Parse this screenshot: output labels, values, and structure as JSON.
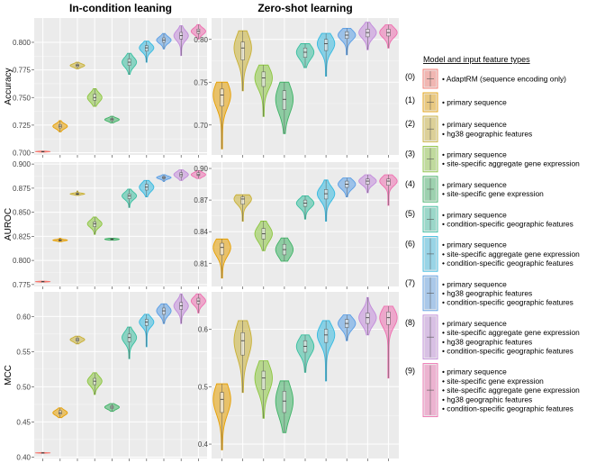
{
  "chart_data": {
    "type": "violin",
    "column_titles": [
      "In-condition leaning",
      "Zero-shot learning"
    ],
    "legend": {
      "title": "Model and input feature types",
      "entries": [
        {
          "code": "(0)",
          "color": "#F8766D",
          "lines": [
            "• AdaptRM (sequence encoding only)"
          ]
        },
        {
          "code": "(1)",
          "color": "#E69F00",
          "lines": [
            "• primary sequence"
          ]
        },
        {
          "code": "(2)",
          "color": "#C9B034",
          "lines": [
            "• primary sequence",
            "• hg38 geographic features"
          ]
        },
        {
          "code": "(3)",
          "color": "#8CC63F",
          "lines": [
            "• primary sequence",
            "• site-specific aggregate gene expression"
          ]
        },
        {
          "code": "(4)",
          "color": "#3FB266",
          "lines": [
            "• primary sequence",
            "• site-specific gene expression"
          ]
        },
        {
          "code": "(5)",
          "color": "#39BFA0",
          "lines": [
            "• primary sequence",
            "• condition-specific geographic features"
          ]
        },
        {
          "code": "(6)",
          "color": "#35B9E0",
          "lines": [
            "• primary sequence",
            "• site-specific aggregate gene expression",
            "• condition-specific geographic features"
          ]
        },
        {
          "code": "(7)",
          "color": "#5A9EE6",
          "lines": [
            "• primary sequence",
            "• hg38 geographic features",
            "• condition-specific geographic features"
          ]
        },
        {
          "code": "(8)",
          "color": "#C28BDB",
          "lines": [
            "• primary sequence",
            "• site-specific aggregate gene expression",
            "• hg38 geographic features",
            "• condition-specific geographic features"
          ]
        },
        {
          "code": "(9)",
          "color": "#EE6FB0",
          "lines": [
            "• primary sequence",
            "• site-specific gene expression",
            "• site-specific aggregate gene expression",
            "• hg38 geographic features",
            "• condition-specific geographic features"
          ]
        }
      ]
    },
    "panels": [
      {
        "id": "acc-in",
        "metric": "Accuracy",
        "column": "In-condition leaning",
        "ylim": [
          0.698,
          0.822
        ],
        "yticks": [
          0.7,
          0.725,
          0.75,
          0.775,
          0.8
        ],
        "tick_labels": [
          "0.700",
          "0.725",
          "0.750",
          "0.775",
          "0.800"
        ],
        "groups": [
          {
            "median": 0.701,
            "q1": 0.7008,
            "q3": 0.7012,
            "min": 0.7005,
            "max": 0.7015
          },
          {
            "median": 0.724,
            "q1": 0.7225,
            "q3": 0.7255,
            "min": 0.719,
            "max": 0.729
          },
          {
            "median": 0.779,
            "q1": 0.778,
            "q3": 0.78,
            "min": 0.776,
            "max": 0.782
          },
          {
            "median": 0.75,
            "q1": 0.7475,
            "q3": 0.753,
            "min": 0.742,
            "max": 0.758
          },
          {
            "median": 0.73,
            "q1": 0.729,
            "q3": 0.731,
            "min": 0.727,
            "max": 0.733
          },
          {
            "median": 0.782,
            "q1": 0.779,
            "q3": 0.785,
            "min": 0.771,
            "max": 0.79
          },
          {
            "median": 0.795,
            "q1": 0.792,
            "q3": 0.797,
            "min": 0.782,
            "max": 0.801
          },
          {
            "median": 0.802,
            "q1": 0.8,
            "q3": 0.804,
            "min": 0.794,
            "max": 0.808
          },
          {
            "median": 0.806,
            "q1": 0.803,
            "q3": 0.809,
            "min": 0.788,
            "max": 0.815
          },
          {
            "median": 0.81,
            "q1": 0.808,
            "q3": 0.812,
            "min": 0.803,
            "max": 0.816
          }
        ]
      },
      {
        "id": "acc-zs",
        "metric": "Accuracy",
        "column": "Zero-shot learning",
        "ylim": [
          0.665,
          0.825
        ],
        "yticks": [
          0.7,
          0.75,
          0.8
        ],
        "tick_labels": [
          "0.70",
          "0.75",
          "0.80"
        ],
        "groups": [
          {
            "median": 0.735,
            "q1": 0.722,
            "q3": 0.742,
            "min": 0.672,
            "max": 0.75
          },
          {
            "median": 0.79,
            "q1": 0.776,
            "q3": 0.797,
            "min": 0.74,
            "max": 0.81
          },
          {
            "median": 0.755,
            "q1": 0.745,
            "q3": 0.762,
            "min": 0.71,
            "max": 0.77
          },
          {
            "median": 0.73,
            "q1": 0.718,
            "q3": 0.74,
            "min": 0.69,
            "max": 0.75
          },
          {
            "median": 0.785,
            "q1": 0.779,
            "q3": 0.79,
            "min": 0.767,
            "max": 0.795
          },
          {
            "median": 0.795,
            "q1": 0.787,
            "q3": 0.8,
            "min": 0.757,
            "max": 0.807
          },
          {
            "median": 0.805,
            "q1": 0.801,
            "q3": 0.809,
            "min": 0.782,
            "max": 0.813
          },
          {
            "median": 0.808,
            "q1": 0.803,
            "q3": 0.812,
            "min": 0.788,
            "max": 0.82
          },
          {
            "median": 0.808,
            "q1": 0.804,
            "q3": 0.812,
            "min": 0.79,
            "max": 0.817
          }
        ]
      },
      {
        "id": "auroc-in",
        "metric": "AUROC",
        "column": "In-condition leaning",
        "ylim": [
          0.773,
          0.902
        ],
        "yticks": [
          0.775,
          0.8,
          0.825,
          0.85,
          0.875,
          0.9
        ],
        "tick_labels": [
          "0.775",
          "0.800",
          "0.825",
          "0.850",
          "0.875",
          "0.900"
        ],
        "groups": [
          {
            "median": 0.778,
            "q1": 0.7778,
            "q3": 0.7782,
            "min": 0.7775,
            "max": 0.7785
          },
          {
            "median": 0.821,
            "q1": 0.8205,
            "q3": 0.8215,
            "min": 0.8195,
            "max": 0.823
          },
          {
            "median": 0.869,
            "q1": 0.8685,
            "q3": 0.8695,
            "min": 0.8675,
            "max": 0.872
          },
          {
            "median": 0.838,
            "q1": 0.835,
            "q3": 0.84,
            "min": 0.827,
            "max": 0.845
          },
          {
            "median": 0.822,
            "q1": 0.8215,
            "q3": 0.8225,
            "min": 0.821,
            "max": 0.823
          },
          {
            "median": 0.867,
            "q1": 0.864,
            "q3": 0.869,
            "min": 0.855,
            "max": 0.874
          },
          {
            "median": 0.876,
            "q1": 0.873,
            "q3": 0.879,
            "min": 0.866,
            "max": 0.883
          },
          {
            "median": 0.886,
            "q1": 0.885,
            "q3": 0.887,
            "min": 0.882,
            "max": 0.889
          },
          {
            "median": 0.889,
            "q1": 0.887,
            "q3": 0.891,
            "min": 0.883,
            "max": 0.894
          },
          {
            "median": 0.889,
            "q1": 0.888,
            "q3": 0.891,
            "min": 0.885,
            "max": 0.893
          }
        ]
      },
      {
        "id": "auroc-zs",
        "metric": "AUROC",
        "column": "Zero-shot learning",
        "ylim": [
          0.788,
          0.906
        ],
        "yticks": [
          0.81,
          0.84,
          0.87,
          0.9
        ],
        "tick_labels": [
          "0.81",
          "0.84",
          "0.87",
          "0.90"
        ],
        "groups": [
          {
            "median": 0.825,
            "q1": 0.818,
            "q3": 0.829,
            "min": 0.796,
            "max": 0.833
          },
          {
            "median": 0.871,
            "q1": 0.866,
            "q3": 0.873,
            "min": 0.85,
            "max": 0.875
          },
          {
            "median": 0.838,
            "q1": 0.833,
            "q3": 0.843,
            "min": 0.822,
            "max": 0.85
          },
          {
            "median": 0.823,
            "q1": 0.818,
            "q3": 0.828,
            "min": 0.812,
            "max": 0.834
          },
          {
            "median": 0.867,
            "q1": 0.864,
            "q3": 0.87,
            "min": 0.852,
            "max": 0.874
          },
          {
            "median": 0.876,
            "q1": 0.871,
            "q3": 0.88,
            "min": 0.85,
            "max": 0.889
          },
          {
            "median": 0.885,
            "q1": 0.882,
            "q3": 0.888,
            "min": 0.873,
            "max": 0.891
          },
          {
            "median": 0.888,
            "q1": 0.885,
            "q3": 0.89,
            "min": 0.877,
            "max": 0.894
          },
          {
            "median": 0.888,
            "q1": 0.884,
            "q3": 0.89,
            "min": 0.865,
            "max": 0.894
          }
        ]
      },
      {
        "id": "mcc-in",
        "metric": "MCC",
        "column": "In-condition leaning",
        "ylim": [
          0.398,
          0.635
        ],
        "yticks": [
          0.4,
          0.45,
          0.5,
          0.55,
          0.6
        ],
        "tick_labels": [
          "0.40",
          "0.45",
          "0.50",
          "0.55",
          "0.60"
        ],
        "groups": [
          {
            "median": 0.406,
            "q1": 0.4058,
            "q3": 0.4062,
            "min": 0.4055,
            "max": 0.4065
          },
          {
            "median": 0.463,
            "q1": 0.461,
            "q3": 0.466,
            "min": 0.456,
            "max": 0.47
          },
          {
            "median": 0.567,
            "q1": 0.565,
            "q3": 0.569,
            "min": 0.561,
            "max": 0.572
          },
          {
            "median": 0.508,
            "q1": 0.503,
            "q3": 0.512,
            "min": 0.489,
            "max": 0.52
          },
          {
            "median": 0.471,
            "q1": 0.469,
            "q3": 0.473,
            "min": 0.465,
            "max": 0.476
          },
          {
            "median": 0.57,
            "q1": 0.564,
            "q3": 0.575,
            "min": 0.54,
            "max": 0.585
          },
          {
            "median": 0.592,
            "q1": 0.587,
            "q3": 0.596,
            "min": 0.557,
            "max": 0.603
          },
          {
            "median": 0.608,
            "q1": 0.603,
            "q3": 0.612,
            "min": 0.59,
            "max": 0.618
          },
          {
            "median": 0.615,
            "q1": 0.61,
            "q3": 0.62,
            "min": 0.59,
            "max": 0.632
          },
          {
            "median": 0.622,
            "q1": 0.618,
            "q3": 0.626,
            "min": 0.605,
            "max": 0.632
          }
        ]
      },
      {
        "id": "mcc-zs",
        "metric": "MCC",
        "column": "Zero-shot learning",
        "ylim": [
          0.375,
          0.665
        ],
        "yticks": [
          0.4,
          0.5,
          0.6
        ],
        "tick_labels": [
          "0.4",
          "0.5",
          "0.6"
        ],
        "groups": [
          {
            "median": 0.478,
            "q1": 0.455,
            "q3": 0.49,
            "min": 0.39,
            "max": 0.505
          },
          {
            "median": 0.58,
            "q1": 0.555,
            "q3": 0.594,
            "min": 0.49,
            "max": 0.615
          },
          {
            "median": 0.515,
            "q1": 0.495,
            "q3": 0.527,
            "min": 0.445,
            "max": 0.545
          },
          {
            "median": 0.475,
            "q1": 0.455,
            "q3": 0.492,
            "min": 0.42,
            "max": 0.51
          },
          {
            "median": 0.57,
            "q1": 0.56,
            "q3": 0.58,
            "min": 0.525,
            "max": 0.59
          },
          {
            "median": 0.59,
            "q1": 0.577,
            "q3": 0.6,
            "min": 0.51,
            "max": 0.615
          },
          {
            "median": 0.61,
            "q1": 0.603,
            "q3": 0.617,
            "min": 0.58,
            "max": 0.625
          },
          {
            "median": 0.62,
            "q1": 0.61,
            "q3": 0.628,
            "min": 0.59,
            "max": 0.655
          },
          {
            "median": 0.62,
            "q1": 0.608,
            "q3": 0.63,
            "min": 0.515,
            "max": 0.64
          }
        ]
      }
    ]
  }
}
